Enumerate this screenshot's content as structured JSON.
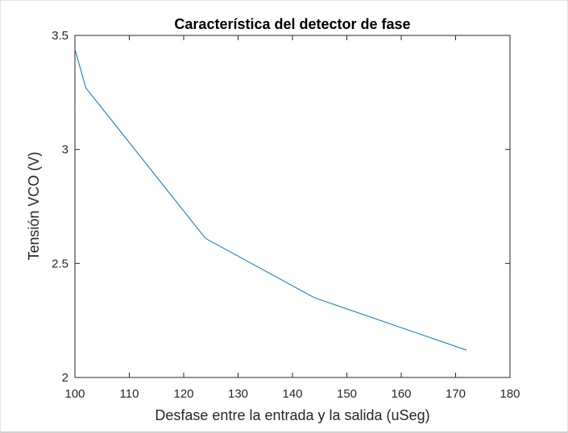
{
  "chart_data": {
    "type": "line",
    "title": "Característica del detector de fase",
    "xlabel": "Desfase entre la entrada y la salida (uSeg)",
    "ylabel": "Tensión VCO (V)",
    "xlim": [
      100,
      180
    ],
    "ylim": [
      2,
      3.5
    ],
    "xticks": [
      100,
      110,
      120,
      130,
      140,
      150,
      160,
      170,
      180
    ],
    "yticks": [
      2,
      2.5,
      3,
      3.5
    ],
    "xtick_labels": [
      "100",
      "110",
      "120",
      "130",
      "140",
      "150",
      "160",
      "170",
      "180"
    ],
    "ytick_labels": [
      "2",
      "2.5",
      "3",
      "3.5"
    ],
    "grid": false,
    "series": [
      {
        "color": "#0072BD",
        "x": [
          100,
          102,
          124,
          144,
          172
        ],
        "y": [
          3.44,
          3.27,
          2.61,
          2.35,
          2.12
        ]
      }
    ]
  }
}
